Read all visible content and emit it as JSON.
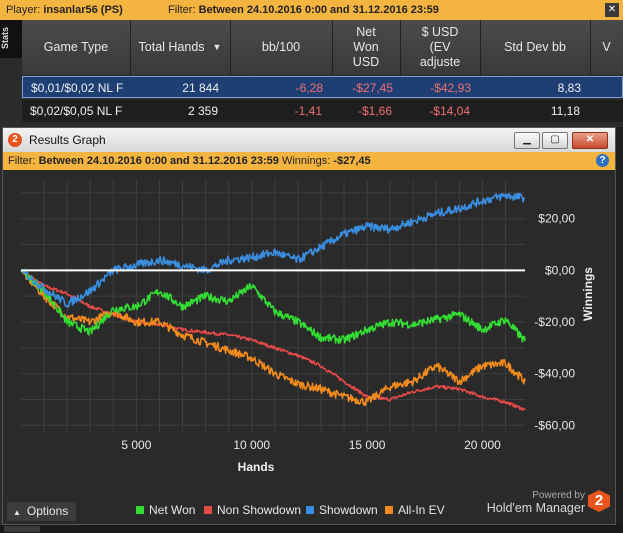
{
  "top_bar": {
    "player_label": "Player:",
    "player_value": "insanlar56 (PS)",
    "filter_label": "Filter:",
    "filter_value": "Between 24.10.2016 0:00 and 31.12.2016 23:59",
    "close_glyph": "✕"
  },
  "stats_tab": {
    "label": "Stats"
  },
  "table": {
    "headers": {
      "game_type": "Game Type",
      "total_hands": "Total Hands",
      "bb100": "bb/100",
      "net_won_usd_1": "Net",
      "net_won_usd_2": "Won",
      "net_won_usd_3": "USD",
      "usd_ev_1": "$ USD",
      "usd_ev_2": "(EV",
      "usd_ev_3": "adjuste",
      "std_dev": "Std Dev bb",
      "extra": "V"
    },
    "sort_glyph": "▼",
    "rows": [
      {
        "game_type": "$0,01/$0,02 NL F",
        "total_hands": "21 844",
        "bb100": "-6,28",
        "net_won": "-$27,45",
        "usd_ev": "-$42,93",
        "std_dev": "8,83"
      },
      {
        "game_type": "$0,02/$0,05 NL F",
        "total_hands": "2 359",
        "bb100": "-1,41",
        "net_won": "-$1,66",
        "usd_ev": "-$14,04",
        "std_dev": "11,18"
      }
    ]
  },
  "results_window": {
    "title": "Results Graph",
    "logo_glyph": "2",
    "min_glyph": "▁",
    "max_glyph": "▢",
    "close_glyph": "✕",
    "filter_label": "Filter:",
    "filter_value": "Between 24.10.2016 0:00 and 31.12.2016 23:59",
    "winnings_label": "Winnings:",
    "winnings_value": "-$27,45",
    "help_glyph": "?",
    "options_label": "Options",
    "options_glyph": "▲",
    "powered_by": "Powered by",
    "brand": "Hold'em Manager",
    "brand_logo_glyph": "2"
  },
  "colors": {
    "net_won": "#33dd33",
    "non_showdown": "#e84a4a",
    "showdown": "#3a8ee0",
    "all_in_ev": "#f08a1c",
    "zero_line": "#ffffff"
  },
  "chart_data": {
    "type": "line",
    "xlabel": "Hands",
    "ylabel": "Winnings",
    "xlim": [
      0,
      21844
    ],
    "ylim": [
      -63,
      35
    ],
    "x_ticks": [
      5000,
      10000,
      15000,
      20000
    ],
    "x_tick_labels": [
      "5 000",
      "10 000",
      "15 000",
      "20 000"
    ],
    "y_ticks": [
      20,
      0,
      -20,
      -40,
      -60
    ],
    "y_tick_labels": [
      "$20,00",
      "$0,00",
      "-$20,00",
      "-$40,00",
      "-$60,00"
    ],
    "grid": true,
    "legend_position": "bottom",
    "series": [
      {
        "name": "Net Won",
        "color_key": "net_won",
        "x": [
          0,
          1000,
          2000,
          3000,
          4000,
          5000,
          6000,
          7000,
          8000,
          9000,
          10000,
          11000,
          12000,
          13000,
          14000,
          15000,
          16000,
          17000,
          18000,
          19000,
          20000,
          21000,
          21844
        ],
        "y": [
          0,
          -8,
          -20,
          -24,
          -15,
          -14,
          -8,
          -14,
          -10,
          -12,
          -6,
          -16,
          -20,
          -26,
          -27,
          -23,
          -20,
          -21,
          -19,
          -17,
          -23,
          -19,
          -27.45
        ]
      },
      {
        "name": "Non Showdown",
        "color_key": "non_showdown",
        "x": [
          0,
          1000,
          2000,
          3000,
          4000,
          5000,
          6000,
          7000,
          8000,
          9000,
          10000,
          11000,
          12000,
          13000,
          14000,
          15000,
          16000,
          17000,
          18000,
          19000,
          20000,
          21000,
          21844
        ],
        "y": [
          0,
          -6,
          -9,
          -14,
          -17,
          -20,
          -21,
          -23,
          -24,
          -25,
          -27,
          -30,
          -33,
          -37,
          -43,
          -49,
          -50,
          -47,
          -45,
          -46,
          -49,
          -51,
          -54
        ]
      },
      {
        "name": "Showdown",
        "color_key": "showdown",
        "x": [
          0,
          1000,
          2000,
          3000,
          4000,
          5000,
          6000,
          7000,
          8000,
          9000,
          10000,
          11000,
          12000,
          13000,
          14000,
          15000,
          16000,
          17000,
          18000,
          19000,
          20000,
          21000,
          21844
        ],
        "y": [
          0,
          -7,
          -13,
          -8,
          0,
          2,
          4,
          2,
          0,
          4,
          5,
          7,
          4,
          9,
          14,
          17,
          16,
          19,
          22,
          24,
          27,
          29,
          28
        ]
      },
      {
        "name": "All-In EV",
        "color_key": "all_in_ev",
        "x": [
          0,
          1000,
          2000,
          3000,
          4000,
          5000,
          6000,
          7000,
          8000,
          9000,
          10000,
          11000,
          12000,
          13000,
          14000,
          15000,
          16000,
          17000,
          18000,
          19000,
          20000,
          21000,
          21844
        ],
        "y": [
          0,
          -10,
          -18,
          -20,
          -16,
          -20,
          -20,
          -25,
          -28,
          -31,
          -34,
          -40,
          -44,
          -46,
          -49,
          -51,
          -45,
          -43,
          -37,
          -43,
          -37,
          -36,
          -42.93
        ]
      }
    ]
  }
}
